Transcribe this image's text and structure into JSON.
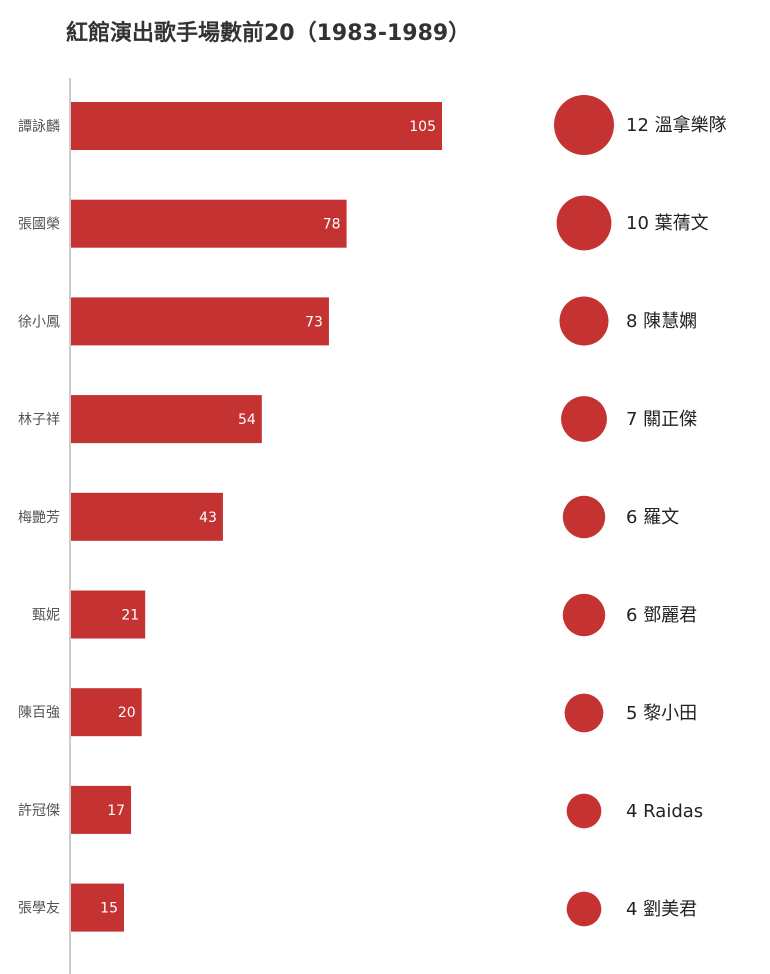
{
  "chart_data": [
    {
      "type": "bar",
      "orientation": "horizontal",
      "title": "紅館演出歌手場數前20（1983-1989）",
      "categories": [
        "譚詠麟",
        "張國榮",
        "徐小鳳",
        "林子祥",
        "梅艷芳",
        "甄妮",
        "陳百強",
        "許冠傑",
        "張學友"
      ],
      "values": [
        105,
        78,
        73,
        54,
        43,
        21,
        20,
        17,
        15
      ],
      "xlim": [
        0,
        105
      ],
      "grid": false,
      "color": "#c43232"
    },
    {
      "type": "scatter",
      "style": "bubble-list",
      "categories": [
        "溫拿樂隊",
        "葉蒨文",
        "陳慧嫻",
        "關正傑",
        "羅文",
        "鄧麗君",
        "黎小田",
        "Raidas",
        "劉美君"
      ],
      "values": [
        12,
        10,
        8,
        7,
        6,
        6,
        5,
        4,
        4
      ],
      "color": "#c43232"
    }
  ]
}
